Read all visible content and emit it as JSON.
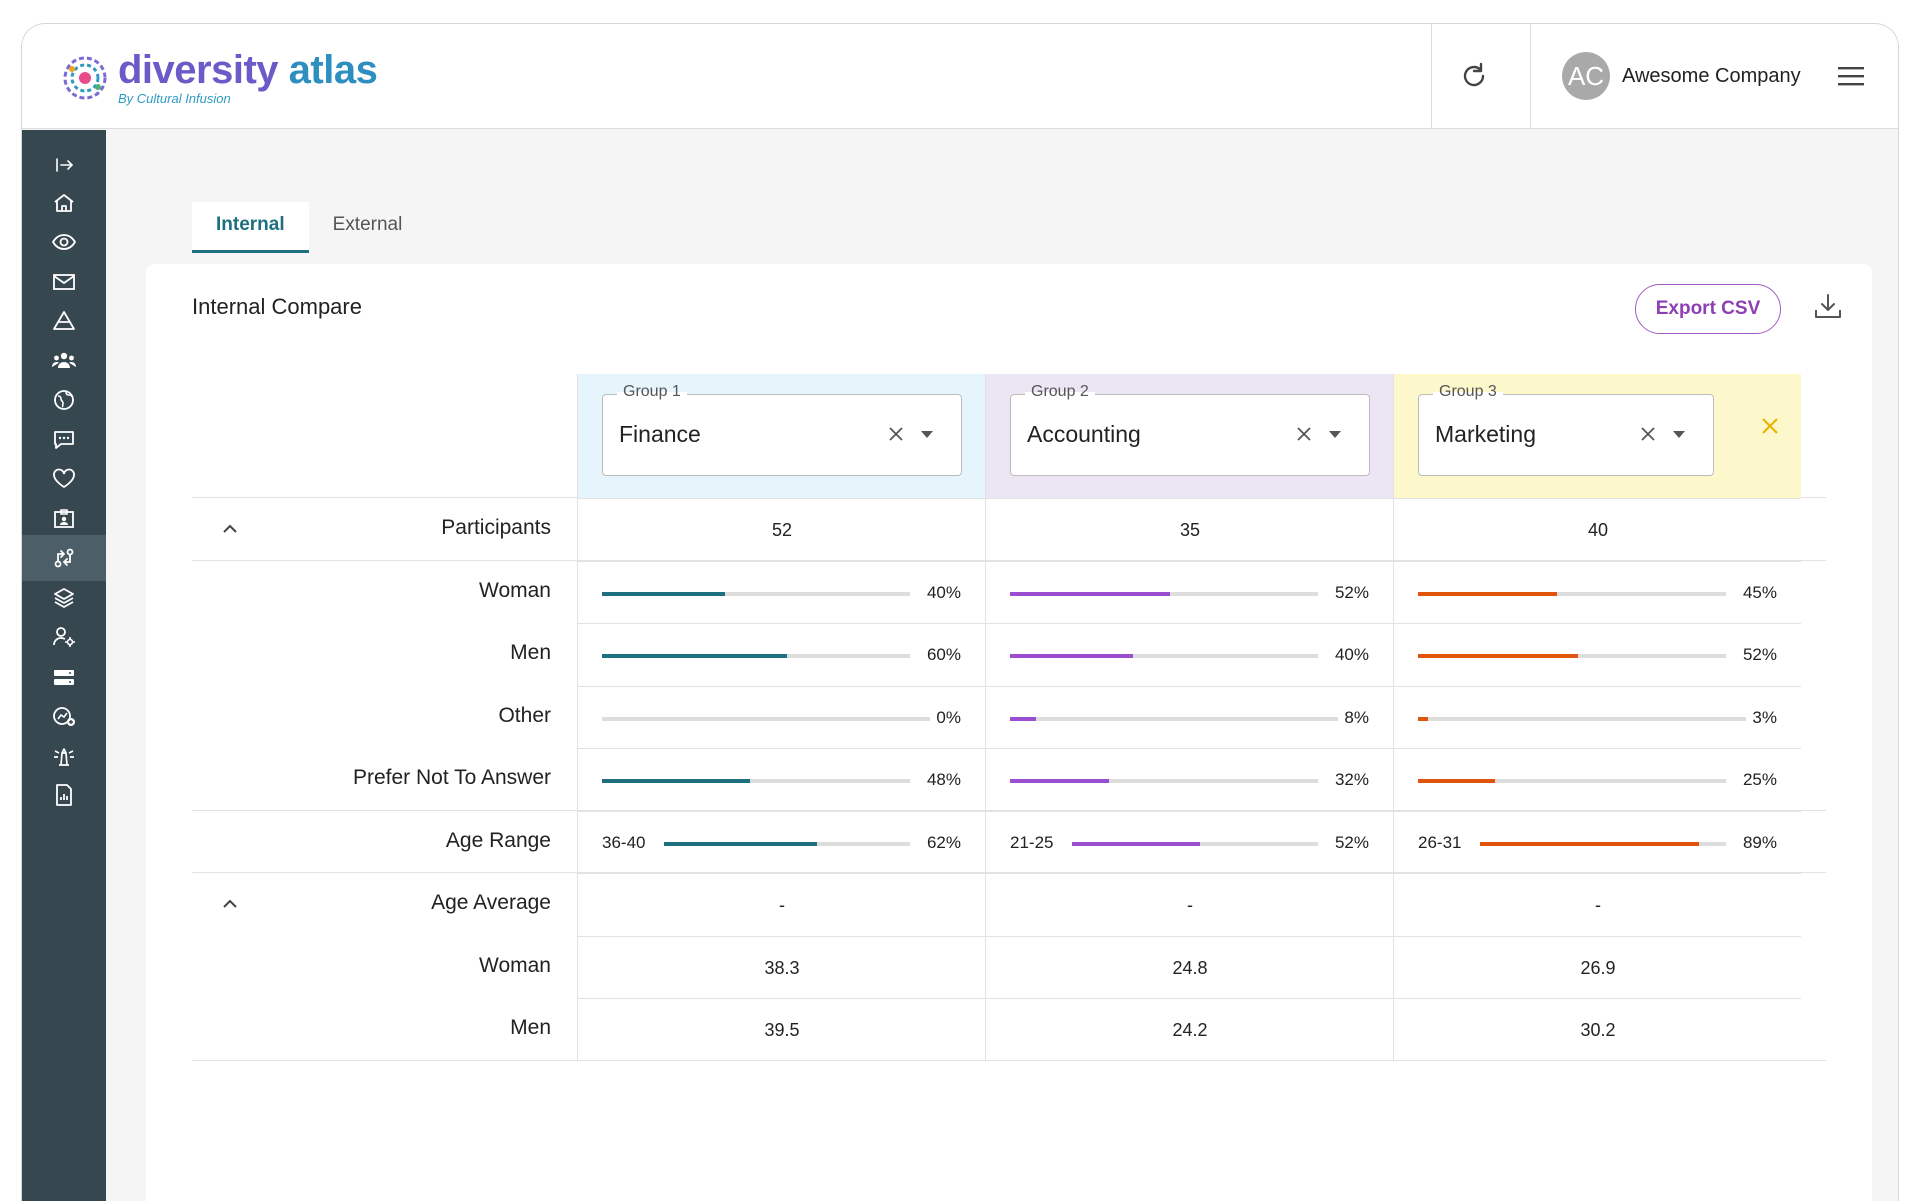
{
  "app": {
    "logo_title": "diversity",
    "logo_title_accent": "atlas",
    "logo_subtitle": "By Cultural Infusion"
  },
  "header": {
    "user_initials": "AC",
    "user_name": "Awesome Company"
  },
  "sidebar": {
    "items": [
      {
        "icon": "expand-sidebar-icon"
      },
      {
        "icon": "home-icon"
      },
      {
        "icon": "eye-icon"
      },
      {
        "icon": "mail-icon"
      },
      {
        "icon": "pyramid-icon"
      },
      {
        "icon": "people-group-icon"
      },
      {
        "icon": "globe-icon"
      },
      {
        "icon": "chat-icon"
      },
      {
        "icon": "heart-icon"
      },
      {
        "icon": "id-badge-icon"
      },
      {
        "icon": "compare-icon",
        "active": true
      },
      {
        "icon": "layers-icon"
      },
      {
        "icon": "user-settings-icon"
      },
      {
        "icon": "storage-icon"
      },
      {
        "icon": "analytics-add-icon"
      },
      {
        "icon": "lighthouse-icon"
      },
      {
        "icon": "report-icon"
      }
    ]
  },
  "tabs": [
    {
      "label": "Internal",
      "active": true
    },
    {
      "label": "External",
      "active": false
    }
  ],
  "card": {
    "title": "Internal Compare",
    "export_label": "Export CSV"
  },
  "groups": [
    {
      "legend": "Group 1",
      "value": "Finance",
      "color": "#1e7080",
      "header_bg": "#e6f4fb"
    },
    {
      "legend": "Group 2",
      "value": "Accounting",
      "color": "#9b4fd0",
      "header_bg": "#ece6f4"
    },
    {
      "legend": "Group 3",
      "value": "Marketing",
      "color": "#e0540c",
      "header_bg": "#fdf7cc"
    }
  ],
  "rows": [
    {
      "label": "Participants",
      "type": "text",
      "collapsible": true,
      "values": [
        "52",
        "35",
        "40"
      ]
    },
    {
      "label": "Woman",
      "type": "bar",
      "values": [
        40,
        52,
        45
      ],
      "labels": [
        "40%",
        "52%",
        "45%"
      ]
    },
    {
      "label": "Men",
      "type": "bar",
      "values": [
        60,
        40,
        52
      ],
      "labels": [
        "60%",
        "40%",
        "52%"
      ]
    },
    {
      "label": "Other",
      "type": "bar",
      "values": [
        0,
        8,
        3
      ],
      "labels": [
        "0%",
        "8%",
        "3%"
      ]
    },
    {
      "label": "Prefer Not To Answer",
      "type": "bar",
      "values": [
        48,
        32,
        25
      ],
      "labels": [
        "48%",
        "32%",
        "25%"
      ]
    },
    {
      "label": "Age Range",
      "type": "range",
      "ranges": [
        "36-40",
        "21-25",
        "26-31"
      ],
      "values": [
        62,
        52,
        89
      ],
      "labels": [
        "62%",
        "52%",
        "89%"
      ]
    },
    {
      "label": "Age Average",
      "type": "text",
      "collapsible": true,
      "values": [
        "-",
        "-",
        "-"
      ]
    },
    {
      "label": "Woman",
      "type": "text",
      "values": [
        "38.3",
        "24.8",
        "26.9"
      ]
    },
    {
      "label": "Men",
      "type": "text",
      "values": [
        "39.5",
        "24.2",
        "30.2"
      ]
    }
  ]
}
